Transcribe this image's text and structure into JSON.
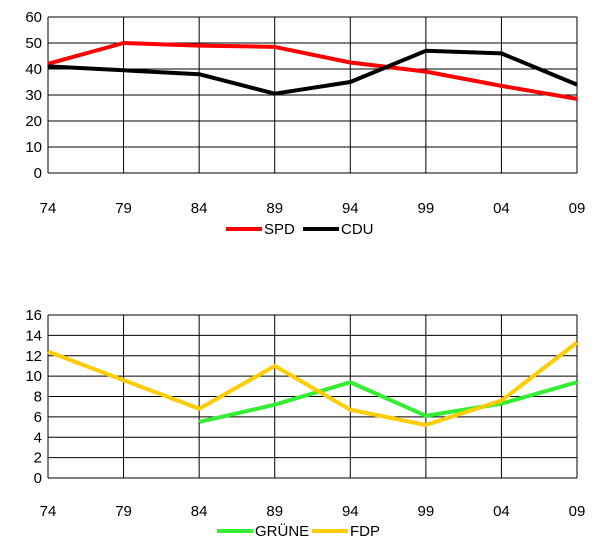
{
  "chart_data": [
    {
      "type": "line",
      "categories": [
        "74",
        "79",
        "84",
        "89",
        "94",
        "99",
        "04",
        "09"
      ],
      "ylim": [
        0,
        60
      ],
      "yticks": [
        0,
        10,
        20,
        30,
        40,
        50,
        60
      ],
      "grid": true,
      "legend": "bottom",
      "series": [
        {
          "name": "SPD",
          "color": "#ff0000",
          "values": [
            42,
            50,
            49,
            48.5,
            42.5,
            39,
            33.5,
            28.5
          ]
        },
        {
          "name": "CDU",
          "color": "#000000",
          "values": [
            41,
            39.5,
            38,
            30.5,
            35,
            47,
            46,
            34
          ]
        }
      ]
    },
    {
      "type": "line",
      "categories": [
        "74",
        "79",
        "84",
        "89",
        "94",
        "99",
        "04",
        "09"
      ],
      "ylim": [
        0,
        16
      ],
      "yticks": [
        0,
        2,
        4,
        6,
        8,
        10,
        12,
        14,
        16
      ],
      "grid": true,
      "legend": "bottom",
      "series": [
        {
          "name": "GRÜNE",
          "color": "#33ee33",
          "values": [
            null,
            null,
            5.5,
            7.2,
            9.4,
            6.1,
            7.3,
            9.4
          ]
        },
        {
          "name": "FDP",
          "color": "#ffcc00",
          "values": [
            12.4,
            9.6,
            6.8,
            11,
            6.7,
            5.2,
            7.6,
            13.3
          ]
        }
      ]
    }
  ]
}
